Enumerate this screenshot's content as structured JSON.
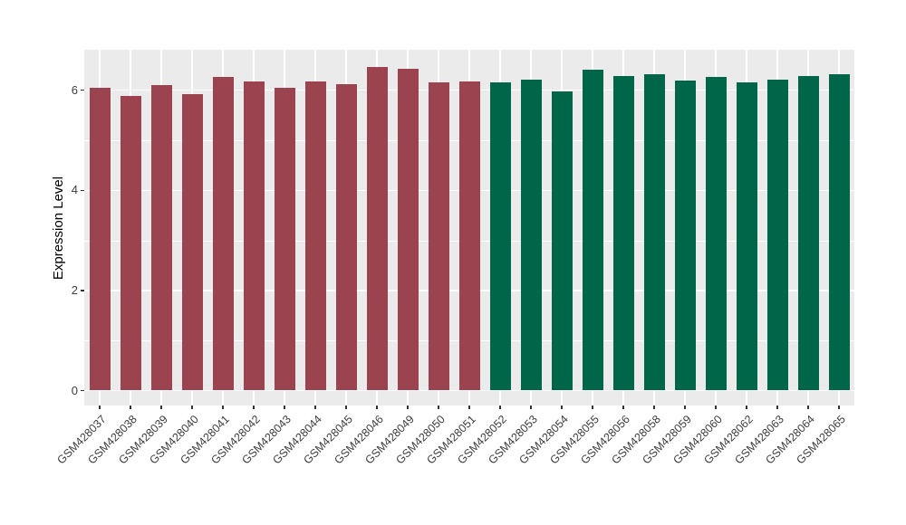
{
  "chart_data": {
    "type": "bar",
    "title": "",
    "xlabel": "",
    "ylabel": "Expression Level",
    "ylim": [
      0,
      6.8
    ],
    "yticks_major": [
      0,
      2,
      4,
      6
    ],
    "yticks_minor": [
      1,
      3,
      5
    ],
    "grid": "gray panel with white major/minor gridlines (ggplot theme_gray)",
    "legend_position": "none",
    "x_tick_angle": 45,
    "categories": [
      "GSM428037",
      "GSM428038",
      "GSM428039",
      "GSM428040",
      "GSM428041",
      "GSM428042",
      "GSM428043",
      "GSM428044",
      "GSM428045",
      "GSM428046",
      "GSM428049",
      "GSM428050",
      "GSM428051",
      "GSM428052",
      "GSM428053",
      "GSM428054",
      "GSM428055",
      "GSM428056",
      "GSM428058",
      "GSM428059",
      "GSM428060",
      "GSM428062",
      "GSM428063",
      "GSM428064",
      "GSM428065"
    ],
    "values": [
      6.04,
      5.88,
      6.1,
      5.93,
      6.26,
      6.17,
      6.05,
      6.17,
      6.13,
      6.46,
      6.42,
      6.15,
      6.17,
      6.15,
      6.21,
      5.97,
      6.41,
      6.29,
      6.32,
      6.2,
      6.27,
      6.15,
      6.21,
      6.28,
      6.32
    ],
    "groups": [
      "A",
      "A",
      "A",
      "A",
      "A",
      "A",
      "A",
      "A",
      "A",
      "A",
      "A",
      "A",
      "A",
      "B",
      "B",
      "B",
      "B",
      "B",
      "B",
      "B",
      "B",
      "B",
      "B",
      "B",
      "B"
    ],
    "group_colors": {
      "A": "#9B4450",
      "B": "#00664A"
    }
  },
  "style": {
    "panel_bg": "#EBEBEB",
    "gridline_color": "#FFFFFF",
    "tick_text_color": "#3D3D3D",
    "axis_title_color": "#000000"
  }
}
